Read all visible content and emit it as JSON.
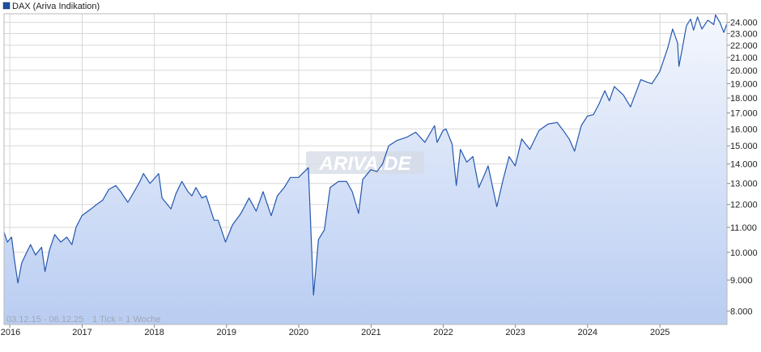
{
  "legend": {
    "label": "DAX (Ariva Indikation)",
    "color": "#1f4e9c"
  },
  "info": {
    "range": "03.12.15 - 06.12.25",
    "tick": "1 Tick = 1 Woche"
  },
  "watermark": "ARIVA.DE",
  "colors": {
    "line": "#2557b0",
    "fill_top": "#f4f7fd",
    "fill_bottom": "#b9cdf2",
    "grid": "#d8d8d8"
  },
  "chart_data": {
    "type": "area",
    "title": "",
    "xlabel": "",
    "ylabel": "",
    "y_scale": "log",
    "ylim": [
      7600,
      24800
    ],
    "xlim": [
      "2015-12-03",
      "2025-12-06"
    ],
    "grid": true,
    "legend_position": "top-left",
    "y_ticks": [
      8000,
      9000,
      10000,
      11000,
      12000,
      13000,
      14000,
      15000,
      16000,
      17000,
      18000,
      19000,
      20000,
      21000,
      22000,
      23000,
      24000
    ],
    "y_tick_labels": [
      "8.000",
      "9.000",
      "10.000",
      "11.000",
      "12.000",
      "13.000",
      "14.000",
      "15.000",
      "16.000",
      "17.000",
      "18.000",
      "19.000",
      "20.000",
      "21.000",
      "22.000",
      "23.000",
      "24.000"
    ],
    "x_ticks": [
      "2016-01-01",
      "2017-01-01",
      "2018-01-01",
      "2019-01-01",
      "2020-01-01",
      "2021-01-01",
      "2022-01-01",
      "2023-01-01",
      "2024-01-01",
      "2025-01-01"
    ],
    "x_tick_labels": [
      "2016",
      "2017",
      "2018",
      "2019",
      "2020",
      "2021",
      "2022",
      "2023",
      "2024",
      "2025"
    ],
    "series": [
      {
        "values": [
          [
            "2015-12-03",
            10800
          ],
          [
            "2015-12-20",
            10400
          ],
          [
            "2016-01-10",
            10600
          ],
          [
            "2016-01-25",
            9700
          ],
          [
            "2016-02-11",
            8900
          ],
          [
            "2016-03-01",
            9600
          ],
          [
            "2016-03-20",
            9900
          ],
          [
            "2016-04-15",
            10300
          ],
          [
            "2016-05-10",
            9900
          ],
          [
            "2016-06-10",
            10200
          ],
          [
            "2016-06-27",
            9300
          ],
          [
            "2016-07-20",
            10100
          ],
          [
            "2016-08-15",
            10700
          ],
          [
            "2016-09-15",
            10400
          ],
          [
            "2016-10-15",
            10600
          ],
          [
            "2016-11-10",
            10300
          ],
          [
            "2016-12-01",
            11000
          ],
          [
            "2016-12-31",
            11500
          ],
          [
            "2017-02-15",
            11800
          ],
          [
            "2017-03-15",
            12000
          ],
          [
            "2017-04-15",
            12200
          ],
          [
            "2017-05-15",
            12700
          ],
          [
            "2017-06-20",
            12900
          ],
          [
            "2017-07-15",
            12600
          ],
          [
            "2017-08-20",
            12100
          ],
          [
            "2017-09-15",
            12500
          ],
          [
            "2017-10-20",
            13100
          ],
          [
            "2017-11-07",
            13500
          ],
          [
            "2017-12-10",
            13000
          ],
          [
            "2018-01-23",
            13500
          ],
          [
            "2018-02-09",
            12300
          ],
          [
            "2018-03-26",
            11800
          ],
          [
            "2018-04-20",
            12500
          ],
          [
            "2018-05-20",
            13100
          ],
          [
            "2018-06-20",
            12600
          ],
          [
            "2018-07-10",
            12400
          ],
          [
            "2018-07-30",
            12800
          ],
          [
            "2018-08-30",
            12300
          ],
          [
            "2018-09-20",
            12400
          ],
          [
            "2018-10-30",
            11300
          ],
          [
            "2018-11-20",
            11300
          ],
          [
            "2018-12-27",
            10400
          ],
          [
            "2019-01-31",
            11100
          ],
          [
            "2019-03-15",
            11600
          ],
          [
            "2019-04-25",
            12300
          ],
          [
            "2019-05-31",
            11700
          ],
          [
            "2019-07-05",
            12600
          ],
          [
            "2019-08-15",
            11500
          ],
          [
            "2019-09-15",
            12400
          ],
          [
            "2019-10-20",
            12800
          ],
          [
            "2019-11-20",
            13300
          ],
          [
            "2019-12-31",
            13300
          ],
          [
            "2020-01-20",
            13500
          ],
          [
            "2020-02-19",
            13800
          ],
          [
            "2020-03-16",
            8500
          ],
          [
            "2020-04-10",
            10500
          ],
          [
            "2020-05-10",
            10900
          ],
          [
            "2020-06-08",
            12800
          ],
          [
            "2020-07-20",
            13100
          ],
          [
            "2020-08-30",
            13100
          ],
          [
            "2020-09-28",
            12600
          ],
          [
            "2020-10-30",
            11600
          ],
          [
            "2020-11-20",
            13200
          ],
          [
            "2020-12-31",
            13700
          ],
          [
            "2021-01-31",
            13600
          ],
          [
            "2021-02-28",
            14000
          ],
          [
            "2021-03-31",
            15000
          ],
          [
            "2021-05-10",
            15300
          ],
          [
            "2021-06-30",
            15500
          ],
          [
            "2021-08-15",
            15800
          ],
          [
            "2021-09-30",
            15200
          ],
          [
            "2021-11-18",
            16200
          ],
          [
            "2021-12-01",
            15200
          ],
          [
            "2021-12-31",
            15900
          ],
          [
            "2022-01-15",
            16000
          ],
          [
            "2022-02-15",
            15100
          ],
          [
            "2022-03-08",
            12900
          ],
          [
            "2022-03-29",
            14800
          ],
          [
            "2022-04-30",
            14100
          ],
          [
            "2022-05-31",
            14400
          ],
          [
            "2022-06-30",
            12800
          ],
          [
            "2022-07-31",
            13500
          ],
          [
            "2022-08-16",
            13900
          ],
          [
            "2022-09-29",
            11900
          ],
          [
            "2022-10-31",
            13200
          ],
          [
            "2022-11-30",
            14400
          ],
          [
            "2022-12-31",
            13900
          ],
          [
            "2023-02-02",
            15400
          ],
          [
            "2023-03-15",
            14800
          ],
          [
            "2023-04-30",
            15900
          ],
          [
            "2023-06-15",
            16300
          ],
          [
            "2023-07-31",
            16400
          ],
          [
            "2023-08-31",
            15900
          ],
          [
            "2023-09-30",
            15400
          ],
          [
            "2023-10-27",
            14700
          ],
          [
            "2023-11-30",
            16200
          ],
          [
            "2023-12-31",
            16800
          ],
          [
            "2024-01-31",
            16900
          ],
          [
            "2024-02-28",
            17600
          ],
          [
            "2024-03-28",
            18500
          ],
          [
            "2024-04-20",
            17800
          ],
          [
            "2024-05-15",
            18800
          ],
          [
            "2024-06-30",
            18200
          ],
          [
            "2024-08-05",
            17400
          ],
          [
            "2024-09-26",
            19300
          ],
          [
            "2024-10-31",
            19100
          ],
          [
            "2024-11-21",
            19000
          ],
          [
            "2024-12-31",
            19900
          ],
          [
            "2025-02-10",
            21800
          ],
          [
            "2025-03-06",
            23400
          ],
          [
            "2025-03-31",
            22200
          ],
          [
            "2025-04-07",
            20300
          ],
          [
            "2025-05-15",
            23700
          ],
          [
            "2025-06-05",
            24300
          ],
          [
            "2025-06-20",
            23300
          ],
          [
            "2025-07-10",
            24500
          ],
          [
            "2025-08-01",
            23400
          ],
          [
            "2025-08-31",
            24200
          ],
          [
            "2025-09-30",
            23800
          ],
          [
            "2025-10-09",
            24700
          ],
          [
            "2025-10-31",
            24000
          ],
          [
            "2025-11-20",
            23100
          ],
          [
            "2025-12-06",
            23900
          ]
        ]
      }
    ]
  }
}
